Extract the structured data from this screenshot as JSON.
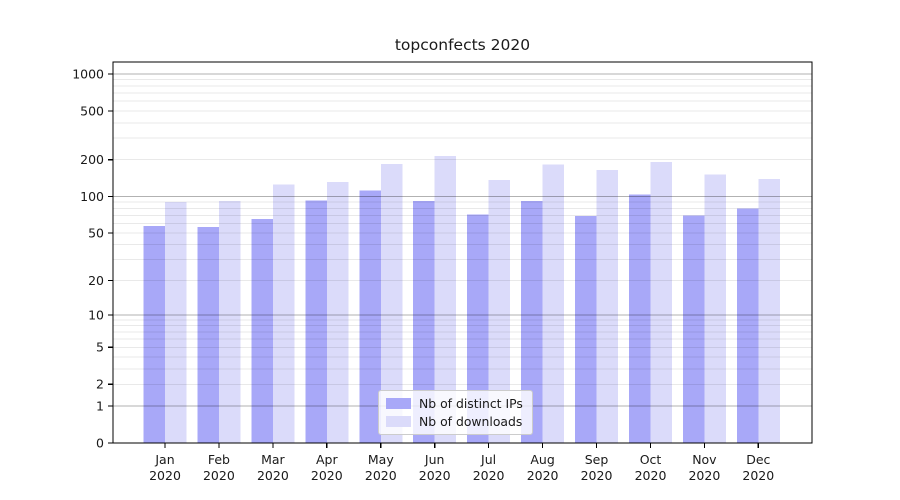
{
  "chart_data": {
    "type": "bar",
    "title": "topconfects 2020",
    "categories": [
      "Jan 2020",
      "Feb 2020",
      "Mar 2020",
      "Apr 2020",
      "May 2020",
      "Jun 2020",
      "Jul 2020",
      "Aug 2020",
      "Sep 2020",
      "Oct 2020",
      "Nov 2020",
      "Dec 2020"
    ],
    "series": [
      {
        "name": "Nb of distinct IPs",
        "color": "#a8a8f8",
        "values": [
          57,
          56,
          65,
          93,
          112,
          92,
          71,
          92,
          69,
          104,
          70,
          80
        ]
      },
      {
        "name": "Nb of downloads",
        "color": "#dbdbfa",
        "values": [
          90,
          92,
          125,
          132,
          184,
          214,
          136,
          182,
          165,
          192,
          151,
          139
        ]
      }
    ],
    "yscale": "log1p",
    "yticks": [
      0,
      1,
      2,
      5,
      10,
      20,
      50,
      100,
      200,
      500,
      1000
    ],
    "ylim": [
      0,
      1250
    ],
    "xlabel": "",
    "ylabel": "",
    "grid": {
      "enabled": true,
      "major_levels": [
        1,
        10,
        100,
        1000
      ],
      "major_color": "rgba(0,0,0,0.30)",
      "minor_color": "rgba(0,0,0,0.085)"
    },
    "legend": {
      "position": "lower-center"
    },
    "axis_color": "#000000",
    "background_color": "#ffffff"
  }
}
